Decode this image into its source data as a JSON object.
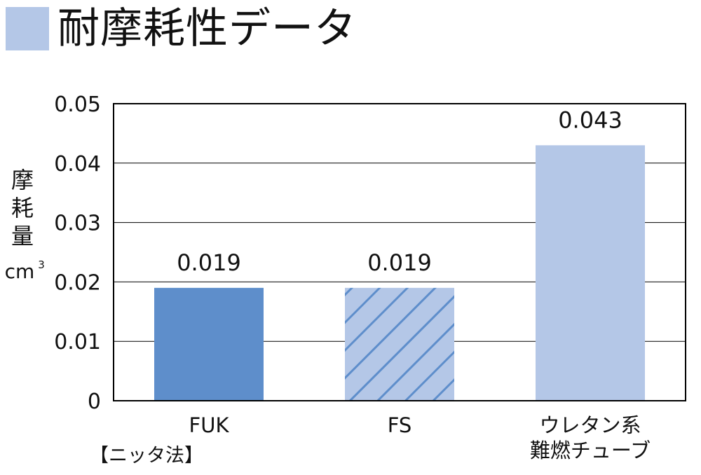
{
  "title": "耐摩耗性データ",
  "note": "【ニッタ法】",
  "chart_data": {
    "type": "bar",
    "title": "耐摩耗性データ",
    "ylabel_lines": [
      "摩",
      "耗",
      "量"
    ],
    "ylabel_unit": "cm",
    "ylabel_unit_sup": "3",
    "ylim": [
      0,
      0.05
    ],
    "yticks": [
      "0",
      "0.01",
      "0.02",
      "0.03",
      "0.04",
      "0.05"
    ],
    "ytick_values": [
      0,
      0.01,
      0.02,
      0.03,
      0.04,
      0.05
    ],
    "grid": true,
    "categories": [
      [
        "FUK"
      ],
      [
        "FS"
      ],
      [
        "ウレタン系",
        "難燃チューブ"
      ]
    ],
    "values": [
      0.019,
      0.019,
      0.043
    ],
    "value_labels": [
      "0.019",
      "0.019",
      "0.043"
    ],
    "bar_colors": [
      "#5e8ecb",
      "#b4c7e7",
      "#b4c7e7"
    ],
    "bar_hatch": [
      false,
      true,
      false
    ],
    "hatch_color": "#5e8ecb"
  }
}
